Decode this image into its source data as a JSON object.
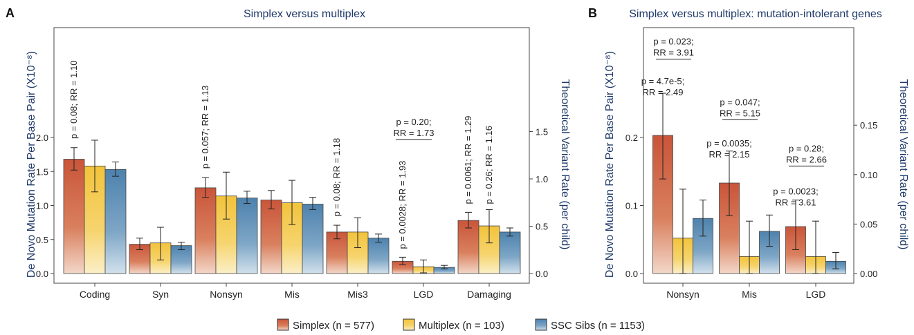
{
  "colors": {
    "simplex": "#c9553a",
    "multiplex": "#f2c33c",
    "sibs": "#4d82ad",
    "title": "#1f3a68"
  },
  "legend": [
    {
      "key": "simplex",
      "label": "Simplex (n = 577)"
    },
    {
      "key": "multiplex",
      "label": "Multiplex (n = 103)"
    },
    {
      "key": "sibs",
      "label": "SSC Sibs (n = 1153)"
    }
  ],
  "chart_data": [
    {
      "type": "bar",
      "panel": "A",
      "title": "Simplex versus multiplex",
      "ylabel": "De Novo Mutation Rate Per Base Pair (X10⁻⁸)",
      "y2label": "Theoretical Variant Rate (per child)",
      "ylim": [
        0,
        2.0
      ],
      "y_ticks": [
        0.0,
        0.5,
        1.0,
        1.5,
        2.0
      ],
      "y_tick_labels": [
        "0.0",
        "0.5",
        "1.0",
        "1.5",
        "2.0"
      ],
      "y2_ticks": [
        0.0,
        0.5,
        1.0,
        1.5
      ],
      "y2_tick_labels": [
        "0.0",
        "0.5",
        "1.0",
        "1.5"
      ],
      "y2_per_y": 0.72,
      "categories": [
        "Coding",
        "Syn",
        "Nonsyn",
        "Mis",
        "Mis3",
        "LGD",
        "Damaging"
      ],
      "series": [
        {
          "name": "Simplex (n = 577)",
          "key": "simplex",
          "values": [
            1.68,
            0.43,
            1.26,
            1.08,
            0.61,
            0.18,
            0.78
          ],
          "err_low": [
            1.52,
            0.35,
            1.12,
            0.95,
            0.51,
            0.13,
            0.67
          ],
          "err_high": [
            1.85,
            0.52,
            1.41,
            1.22,
            0.71,
            0.24,
            0.9
          ]
        },
        {
          "name": "Multiplex (n = 103)",
          "key": "multiplex",
          "values": [
            1.58,
            0.45,
            1.14,
            1.04,
            0.61,
            0.1,
            0.7
          ],
          "err_low": [
            1.2,
            0.2,
            0.8,
            0.72,
            0.38,
            0.01,
            0.45
          ],
          "err_high": [
            1.96,
            0.68,
            1.49,
            1.37,
            0.82,
            0.2,
            0.94
          ]
        },
        {
          "name": "SSC Sibs (n = 1153)",
          "key": "sibs",
          "values": [
            1.53,
            0.41,
            1.11,
            1.02,
            0.52,
            0.09,
            0.61
          ],
          "err_low": [
            1.43,
            0.35,
            1.03,
            0.94,
            0.46,
            0.07,
            0.55
          ],
          "err_high": [
            1.64,
            0.46,
            1.21,
            1.12,
            0.58,
            0.12,
            0.67
          ]
        }
      ],
      "annotations": [
        {
          "text": "p = 0.08; RR = 1.10",
          "category": 0,
          "series": 0,
          "rotated": true,
          "value": 1.98
        },
        {
          "text": "p = 0.057; RR = 1.13",
          "category": 2,
          "series": 0,
          "rotated": true,
          "value": 1.54
        },
        {
          "text": "p = 0.08; RR = 1.18",
          "category": 4,
          "series": 0,
          "rotated": true,
          "value": 0.84
        },
        {
          "text": "p = 0.0028; RR = 1.93",
          "category": 5,
          "series": 0,
          "rotated": true,
          "value": 0.36
        },
        {
          "text": "p = 0.0061; RR = 1.29",
          "category": 6,
          "series": 0,
          "rotated": true,
          "value": 1.02
        },
        {
          "text": "p = 0.26; RR = 1.16",
          "category": 6,
          "series": 1,
          "rotated": true,
          "value": 1.02
        }
      ],
      "brackets": [
        {
          "category": 5,
          "from_series": 0,
          "to_series": 1,
          "value": 1.97,
          "lines": [
            "p = 0.20;",
            "RR = 1.73"
          ]
        }
      ]
    },
    {
      "type": "bar",
      "panel": "B",
      "title": "Simplex versus multiplex: mutation-intolerant genes",
      "ylabel": "De Novo Mutation Rate Per Base Pair (X10⁻⁸)",
      "y2label": "Theoretical Variant Rate (per child)",
      "ylim": [
        0,
        0.2
      ],
      "y_ticks": [
        0.0,
        0.1,
        0.2
      ],
      "y_tick_labels": [
        "0.0",
        "0.1",
        "0.2"
      ],
      "y2_ticks": [
        0.0,
        0.05,
        0.1,
        0.15
      ],
      "y2_tick_labels": [
        "0.00",
        "0.05",
        "0.10",
        "0.15"
      ],
      "y2_per_y": 0.6875,
      "categories": [
        "Nonsyn",
        "Mis",
        "LGD"
      ],
      "series": [
        {
          "name": "Simplex (n = 577)",
          "key": "simplex",
          "values": [
            0.203,
            0.133,
            0.069
          ],
          "err_low": [
            0.139,
            0.085,
            0.035
          ],
          "err_high": [
            0.265,
            0.18,
            0.108
          ]
        },
        {
          "name": "Multiplex (n = 103)",
          "key": "multiplex",
          "values": [
            0.052,
            0.025,
            0.025
          ],
          "err_low": [
            0.0,
            0.0,
            0.0
          ],
          "err_high": [
            0.124,
            0.077,
            0.077
          ]
        },
        {
          "name": "SSC Sibs (n = 1153)",
          "key": "sibs",
          "values": [
            0.081,
            0.062,
            0.018
          ],
          "err_low": [
            0.055,
            0.04,
            0.007
          ],
          "err_high": [
            0.108,
            0.086,
            0.031
          ]
        }
      ],
      "annotations": [
        {
          "lines": [
            "p = 4.7e-5;",
            "RR = 2.49"
          ],
          "category": 0,
          "value": 0.278
        },
        {
          "lines": [
            "p = 0.0035;",
            "RR = 2.15"
          ],
          "category": 1,
          "value": 0.187
        },
        {
          "lines": [
            "p = 0.0023;",
            "RR = 3.61"
          ],
          "category": 2,
          "value": 0.116
        }
      ],
      "brackets": [
        {
          "category": 0,
          "from_series": 0,
          "to_series": 1,
          "value": 0.315,
          "lines": [
            "p = 0.023;",
            "RR = 3.91"
          ]
        },
        {
          "category": 1,
          "from_series": 0,
          "to_series": 1,
          "value": 0.226,
          "lines": [
            "p = 0.047;",
            "RR = 5.15"
          ]
        },
        {
          "category": 2,
          "from_series": 0,
          "to_series": 1,
          "value": 0.158,
          "lines": [
            "p = 0.28;",
            "RR = 2.66"
          ]
        }
      ]
    }
  ]
}
